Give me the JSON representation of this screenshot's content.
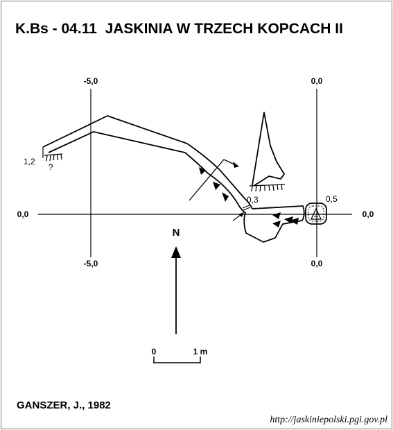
{
  "title": "K.Bs - 04.11  JASKINIA W TRZECH KOPCACH II",
  "author": "GANSZER, J., 1982",
  "source_url": "http://jaskiniepolski.pgi.gov.pl",
  "north_label": "N",
  "scale": {
    "start": "0",
    "end": "1 m"
  },
  "plan_axis_labels": {
    "top": "-5,0",
    "bottom": "-5,0",
    "left": "0,0"
  },
  "profile_axis_labels": {
    "top": "0,0",
    "bottom": "0,0",
    "right": "0,0"
  },
  "depth_labels": {
    "west_end": "1,2",
    "question": "?",
    "mid": "0,3",
    "east": "0,5"
  }
}
